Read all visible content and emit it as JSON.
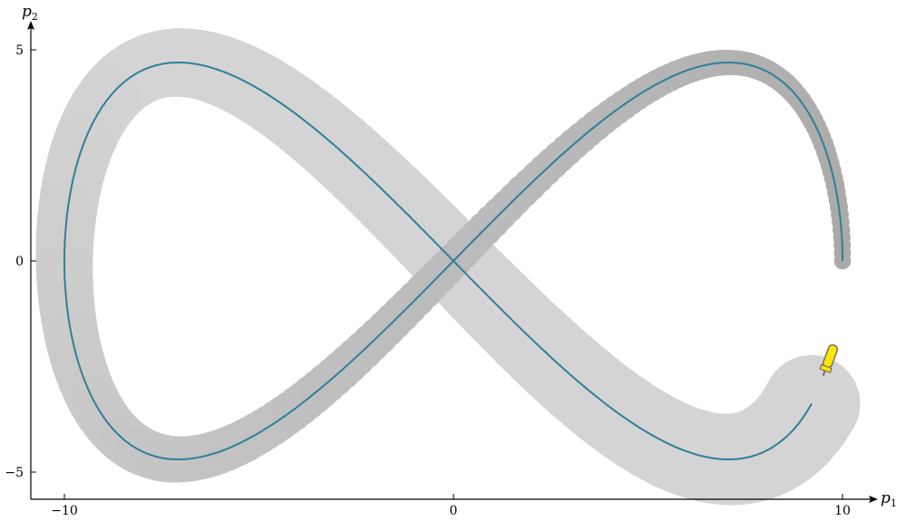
{
  "chart_data": {
    "type": "line",
    "title": "",
    "xlabel": "p",
    "xlabel_sub": "1",
    "ylabel": "p",
    "ylabel_sub": "2",
    "xlim": [
      -10.9,
      10.9
    ],
    "ylim": [
      -5.6,
      5.6
    ],
    "x_ticks": [
      -10,
      0,
      10
    ],
    "x_tick_labels": [
      "−10",
      "0",
      "10"
    ],
    "y_ticks": [
      -5,
      0,
      5
    ],
    "y_tick_labels": [
      "−5",
      "0",
      "5"
    ],
    "grid": false,
    "legend": "none",
    "curve": {
      "name": "",
      "form": "lemniscate of Gerono: x = 10·cos(t), y = 4.7·sin(2t)",
      "x_amplitude": 10,
      "y_amplitude": 4.7,
      "t_start_deg": 0,
      "t_end_deg": 337,
      "color": "#2f7f9a",
      "points": [
        [
          10,
          0
        ],
        [
          7.07,
          4.7
        ],
        [
          0,
          0
        ],
        [
          -7.07,
          -4.7
        ],
        [
          -10,
          0
        ],
        [
          -7.07,
          4.7
        ],
        [
          0,
          0
        ],
        [
          7.07,
          -4.7
        ],
        [
          9.2,
          -3.35
        ]
      ]
    },
    "uncertainty_band": {
      "description": "gray tube around the trajectory, widening as the path progresses",
      "color_dark": "#a9a9a9",
      "color_light": "#d4d4d4",
      "half_width_start": 0.2,
      "half_width_end": 1.15
    },
    "end_marker": {
      "icon": "screwdriver-icon",
      "x": 9.55,
      "y": -2.6,
      "fill": "#ffe600",
      "stroke": "#707070"
    }
  }
}
